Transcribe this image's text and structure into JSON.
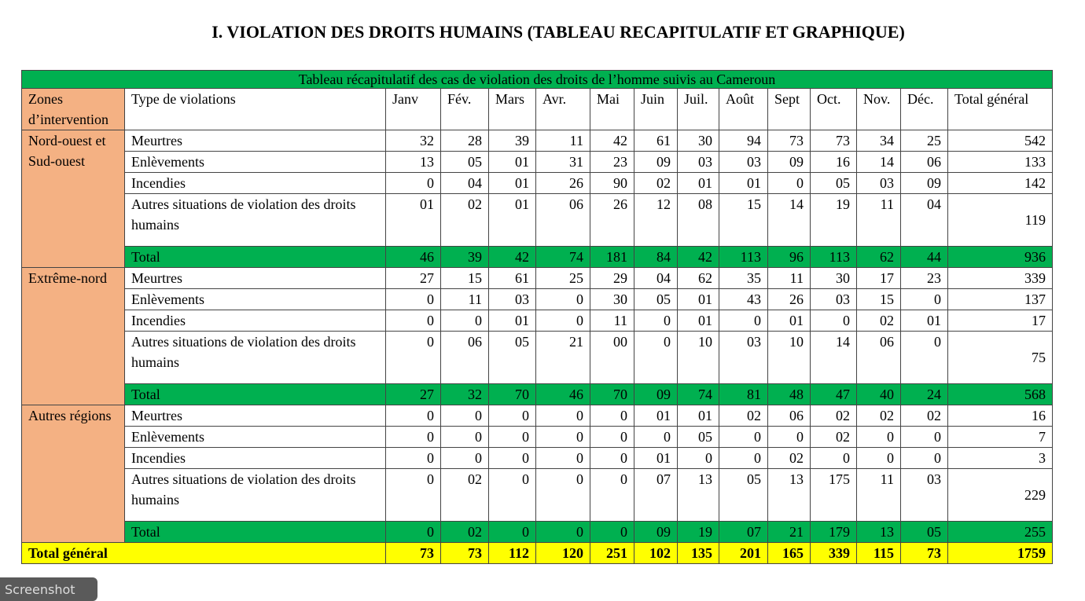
{
  "heading": "I.  VIOLATION DES DROITS HUMAINS (TABLEAU RECAPITULATIF ET GRAPHIQUE)",
  "table": {
    "caption": "Tableau récapitulatif des cas de violation des droits de l’homme suivis au Cameroun",
    "headers": [
      "Zones d’intervention",
      "Type de violations",
      "Janv",
      "Fév.",
      "Mars",
      "Avr.",
      "Mai",
      "Juin",
      "Juil.",
      "Août",
      "Sept",
      "Oct.",
      "Nov.",
      "Déc.",
      "Total général"
    ],
    "zones": [
      {
        "name": "Nord-ouest et Sud-ouest",
        "rows": [
          {
            "type": "Meurtres",
            "values": [
              "32",
              "28",
              "39",
              "11",
              "42",
              "61",
              "30",
              "94",
              "73",
              "73",
              "34",
              "25"
            ],
            "total": "542"
          },
          {
            "type": "Enlèvements",
            "values": [
              "13",
              "05",
              "01",
              "31",
              "23",
              "09",
              "03",
              "03",
              "09",
              "16",
              "14",
              "06"
            ],
            "total": "133"
          },
          {
            "type": "Incendies",
            "values": [
              "0",
              "04",
              "01",
              "26",
              "90",
              "02",
              "01",
              "01",
              "0",
              "05",
              "03",
              "09"
            ],
            "total": "142"
          },
          {
            "type": "Autres situations de violation des droits humains",
            "values": [
              "01",
              "02",
              "01",
              "06",
              "26",
              "12",
              "08",
              "15",
              "14",
              "19",
              "11",
              "04"
            ],
            "total": "119"
          },
          {
            "type": "Total",
            "values": [
              "46",
              "39",
              "42",
              "74",
              "181",
              "84",
              "42",
              "113",
              "96",
              "113",
              "62",
              "44"
            ],
            "total": "936"
          }
        ]
      },
      {
        "name": "Extrême-nord",
        "rows": [
          {
            "type": "Meurtres",
            "values": [
              "27",
              "15",
              "61",
              "25",
              "29",
              "04",
              "62",
              "35",
              "11",
              "30",
              "17",
              "23"
            ],
            "total": "339"
          },
          {
            "type": "Enlèvements",
            "values": [
              "0",
              "11",
              "03",
              "0",
              "30",
              "05",
              "01",
              "43",
              "26",
              "03",
              "15",
              "0"
            ],
            "total": "137"
          },
          {
            "type": "Incendies",
            "values": [
              "0",
              "0",
              "01",
              "0",
              "11",
              "0",
              "01",
              "0",
              "01",
              "0",
              "02",
              "01"
            ],
            "total": "17"
          },
          {
            "type": "Autres situations de violation des droits humains",
            "values": [
              "0",
              "06",
              "05",
              "21",
              "00",
              "0",
              "10",
              "03",
              "10",
              "14",
              "06",
              "0"
            ],
            "total": "75"
          },
          {
            "type": "Total",
            "values": [
              "27",
              "32",
              "70",
              "46",
              "70",
              "09",
              "74",
              "81",
              "48",
              "47",
              "40",
              "24"
            ],
            "total": "568"
          }
        ]
      },
      {
        "name": "Autres régions",
        "rows": [
          {
            "type": "Meurtres",
            "values": [
              "0",
              "0",
              "0",
              "0",
              "0",
              "01",
              "01",
              "02",
              "06",
              "02",
              "02",
              "02"
            ],
            "total": "16"
          },
          {
            "type": "Enlèvements",
            "values": [
              "0",
              "0",
              "0",
              "0",
              "0",
              "0",
              "05",
              "0",
              "0",
              "02",
              "0",
              "0"
            ],
            "total": "7"
          },
          {
            "type": "Incendies",
            "values": [
              "0",
              "0",
              "0",
              "0",
              "0",
              "01",
              "0",
              "0",
              "02",
              "0",
              "0",
              "0"
            ],
            "total": "3"
          },
          {
            "type": "Autres situations de violation des droits humains",
            "values": [
              "0",
              "02",
              "0",
              "0",
              "0",
              "07",
              "13",
              "05",
              "13",
              "175",
              "11",
              "03"
            ],
            "total": "229"
          },
          {
            "type": "Total",
            "values": [
              "0",
              "02",
              "0",
              "0",
              "0",
              "09",
              "19",
              "07",
              "21",
              "179",
              "13",
              "05"
            ],
            "total": "255"
          }
        ]
      }
    ],
    "grand_total": {
      "label": "Total général",
      "values": [
        "73",
        "73",
        "112",
        "120",
        "251",
        "102",
        "135",
        "201",
        "165",
        "339",
        "115",
        "73"
      ],
      "total": "1759"
    }
  },
  "tooltip": "Screenshot",
  "colors": {
    "green": "#00b050",
    "zone": "#f4b183",
    "grand_total": "#ffff00"
  }
}
